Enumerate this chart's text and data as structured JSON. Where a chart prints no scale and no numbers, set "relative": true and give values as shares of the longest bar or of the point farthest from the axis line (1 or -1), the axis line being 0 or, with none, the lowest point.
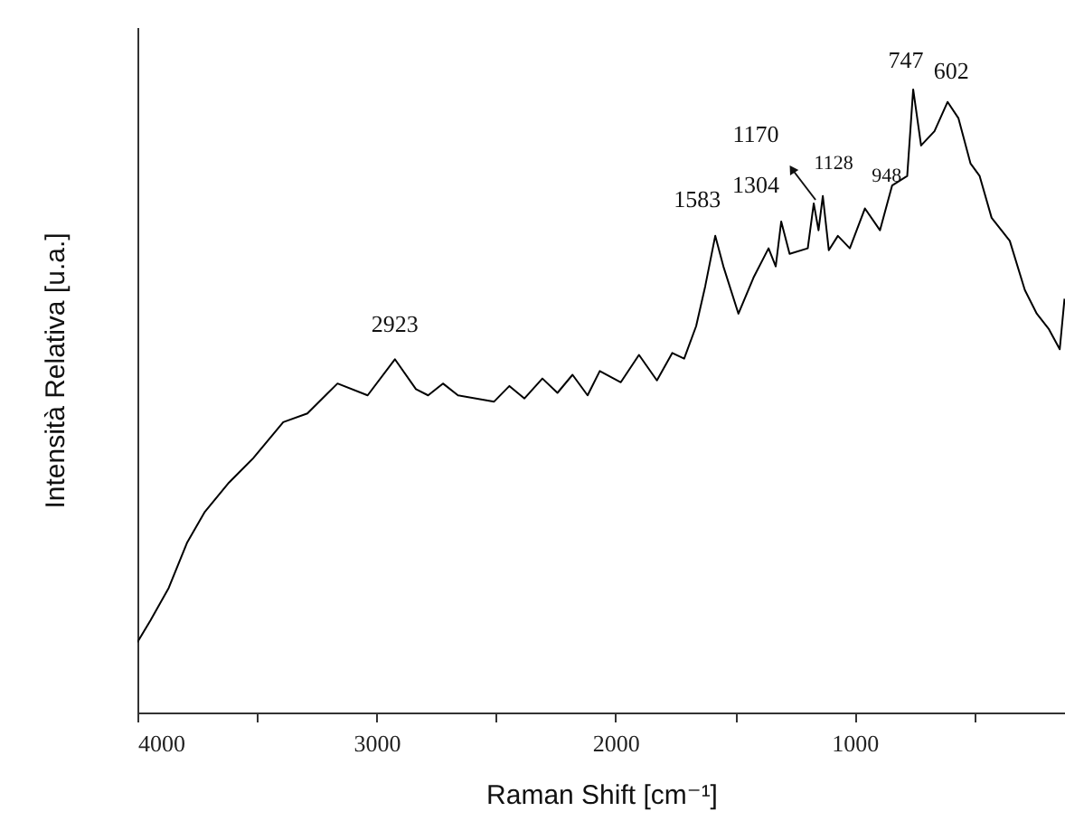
{
  "chart_data": {
    "type": "line",
    "relative": true,
    "xlabel": "Raman Shift [cm⁻¹]",
    "ylabel": "Intensità Relativa [u.a.]",
    "xlim": [
      4000,
      120
    ],
    "xticks": [
      4000,
      {
        "value": 3500,
        "label": null
      },
      3000,
      {
        "value": 2500,
        "label": null
      },
      2000,
      {
        "value": 1500,
        "label": null
      },
      1000,
      {
        "value": 500,
        "label": null
      }
    ],
    "grid": false,
    "series": [
      {
        "color": "#000000",
        "x": [
          4000,
          3945,
          3869,
          3793,
          3718,
          3617,
          3516,
          3390,
          3289,
          3213,
          3163,
          3037,
          2923,
          2835,
          2784,
          2722,
          2659,
          2508,
          2444,
          2381,
          2306,
          2243,
          2180,
          2117,
          2066,
          1978,
          1902,
          1827,
          1763,
          1713,
          1663,
          1625,
          1583,
          1549,
          1486,
          1423,
          1360,
          1330,
          1307,
          1272,
          1196,
          1171,
          1151,
          1133,
          1108,
          1070,
          1020,
          957,
          894,
          843,
          780,
          755,
          722,
          666,
          611,
          566,
          515,
          477,
          427,
          351,
          288,
          238,
          187,
          142,
          122
        ],
        "values": [
          0.113,
          0.148,
          0.2,
          0.272,
          0.322,
          0.369,
          0.408,
          0.466,
          0.48,
          0.509,
          0.528,
          0.509,
          0.567,
          0.519,
          0.509,
          0.528,
          0.509,
          0.499,
          0.524,
          0.504,
          0.536,
          0.513,
          0.542,
          0.509,
          0.548,
          0.53,
          0.574,
          0.533,
          0.577,
          0.568,
          0.62,
          0.684,
          0.765,
          0.716,
          0.64,
          0.698,
          0.745,
          0.716,
          0.788,
          0.736,
          0.745,
          0.817,
          0.774,
          0.829,
          0.742,
          0.765,
          0.745,
          0.809,
          0.774,
          0.846,
          0.861,
          1.0,
          0.91,
          0.933,
          0.98,
          0.954,
          0.881,
          0.861,
          0.794,
          0.757,
          0.678,
          0.64,
          0.615,
          0.583,
          0.664
        ]
      }
    ],
    "annotations": [
      {
        "text": "2923",
        "x": 2923,
        "y": 0.567
      },
      {
        "text": "1583",
        "x": 1583,
        "y": 0.765
      },
      {
        "text": "1304",
        "x": 1307,
        "y": 0.788
      },
      {
        "text": "1170",
        "x": 1171,
        "y": 0.817
      },
      {
        "text": "1128",
        "x": 1133,
        "y": 0.829
      },
      {
        "text": "948",
        "x": 957,
        "y": 0.809
      },
      {
        "text": "747",
        "x": 755,
        "y": 1.0
      },
      {
        "text": "602",
        "x": 611,
        "y": 0.98
      }
    ]
  }
}
